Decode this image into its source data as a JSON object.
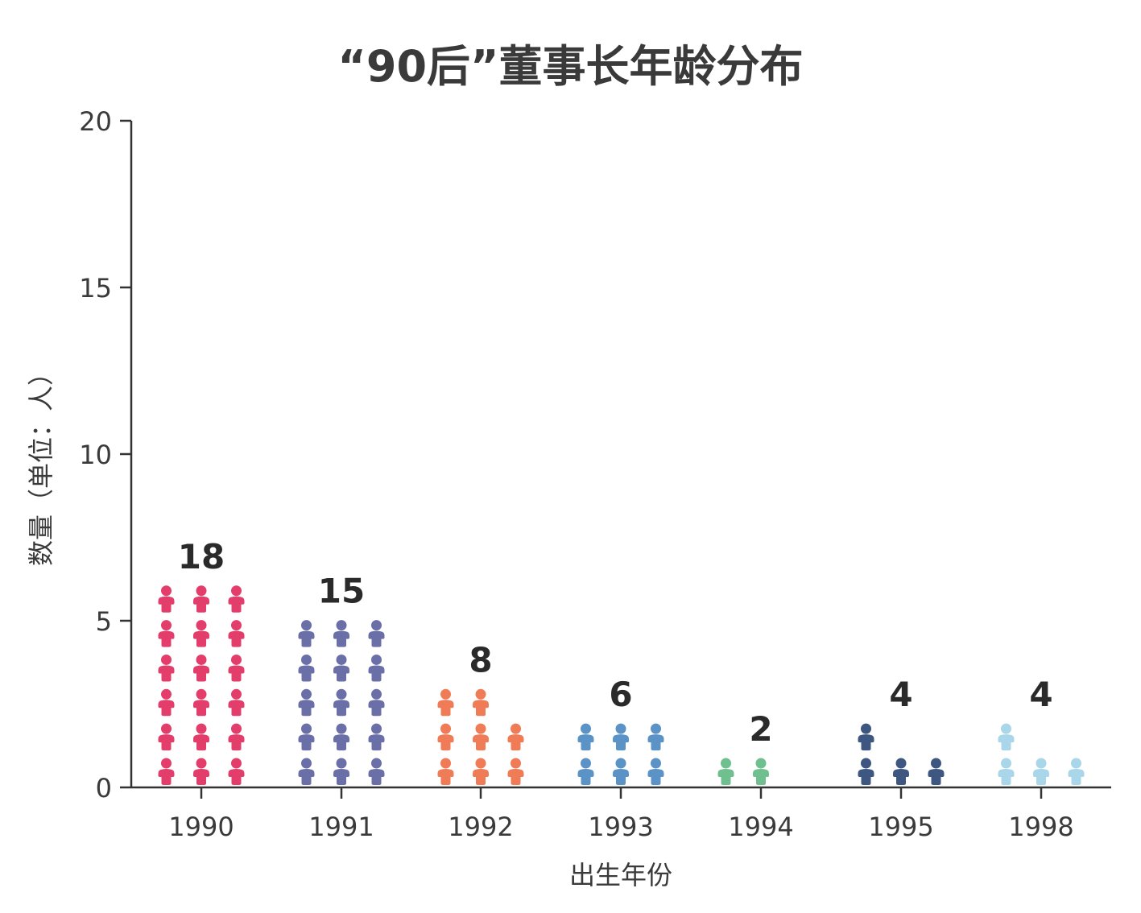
{
  "chart_data": {
    "type": "bar",
    "title": "“90后”董事长年龄分布",
    "xlabel": "出生年份",
    "ylabel": "数量（单位：人）",
    "ylim": [
      0,
      20
    ],
    "yticks": [
      "0",
      "5",
      "10",
      "15",
      "20"
    ],
    "categories": [
      "1990",
      "1991",
      "1992",
      "1993",
      "1994",
      "1995",
      "1998"
    ],
    "values": [
      18,
      15,
      8,
      6,
      2,
      4,
      4
    ],
    "value_labels": [
      "18",
      "15",
      "8",
      "6",
      "2",
      "4",
      "4"
    ],
    "colors": [
      "#e33d6b",
      "#6b6fa8",
      "#ef7b57",
      "#5b93c7",
      "#70c08f",
      "#3d5780",
      "#a9d6e8"
    ],
    "mark": "person-icon"
  }
}
